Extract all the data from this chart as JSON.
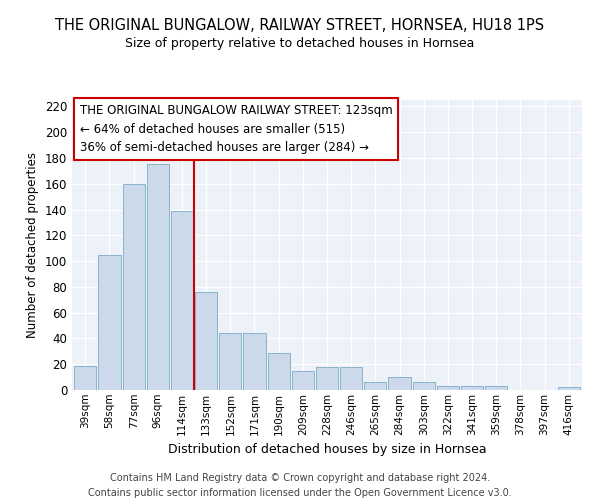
{
  "title": "THE ORIGINAL BUNGALOW, RAILWAY STREET, HORNSEA, HU18 1PS",
  "subtitle": "Size of property relative to detached houses in Hornsea",
  "xlabel": "Distribution of detached houses by size in Hornsea",
  "ylabel": "Number of detached properties",
  "categories": [
    "39sqm",
    "58sqm",
    "77sqm",
    "96sqm",
    "114sqm",
    "133sqm",
    "152sqm",
    "171sqm",
    "190sqm",
    "209sqm",
    "228sqm",
    "246sqm",
    "265sqm",
    "284sqm",
    "303sqm",
    "322sqm",
    "341sqm",
    "359sqm",
    "378sqm",
    "397sqm",
    "416sqm"
  ],
  "values": [
    19,
    105,
    160,
    175,
    139,
    76,
    44,
    44,
    29,
    15,
    18,
    18,
    6,
    10,
    6,
    3,
    3,
    3,
    0,
    0,
    2
  ],
  "bar_color": "#ccd9ea",
  "bar_edge_color": "#7aaac8",
  "reference_line_x": 4.5,
  "reference_label": "THE ORIGINAL BUNGALOW RAILWAY STREET: 123sqm",
  "annotation_line1": "← 64% of detached houses are smaller (515)",
  "annotation_line2": "36% of semi-detached houses are larger (284) →",
  "box_color": "#cc0000",
  "ylim": [
    0,
    225
  ],
  "yticks": [
    0,
    20,
    40,
    60,
    80,
    100,
    120,
    140,
    160,
    180,
    200,
    220
  ],
  "footer_line1": "Contains HM Land Registry data © Crown copyright and database right 2024.",
  "footer_line2": "Contains public sector information licensed under the Open Government Licence v3.0.",
  "background_color": "#edf2f9",
  "grid_color": "#ffffff",
  "title_fontsize": 10.5,
  "subtitle_fontsize": 9.0,
  "ylabel_fontsize": 8.5,
  "xlabel_fontsize": 9.0,
  "ytick_fontsize": 8.5,
  "xtick_fontsize": 7.5,
  "annotation_fontsize": 8.5,
  "footer_fontsize": 7.0
}
